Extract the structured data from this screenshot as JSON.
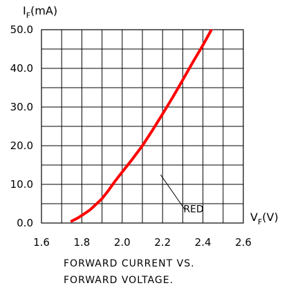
{
  "chart_data": {
    "type": "line",
    "title": "",
    "caption": [
      "FORWARD CURRENT VS.",
      "FORWARD VOLTAGE."
    ],
    "ylabel": {
      "symbol": "I",
      "sub": "F",
      "unit": "(mA)"
    },
    "xlabel": {
      "symbol": "V",
      "sub": "F",
      "unit": "(V)"
    },
    "xlim": [
      1.6,
      2.6
    ],
    "ylim": [
      0,
      50
    ],
    "x_gridlines": [
      1.6,
      1.7,
      1.8,
      1.9,
      2.0,
      2.1,
      2.2,
      2.3,
      2.4,
      2.5,
      2.6
    ],
    "y_gridlines": [
      0,
      5,
      10,
      15,
      20,
      25,
      30,
      35,
      40,
      45,
      50
    ],
    "grid": true,
    "x_ticks": [
      {
        "value": 1.6,
        "label": "1.6"
      },
      {
        "value": 1.8,
        "label": "1.8"
      },
      {
        "value": 2.0,
        "label": "2.0"
      },
      {
        "value": 2.2,
        "label": "2.2"
      },
      {
        "value": 2.4,
        "label": "2.4"
      },
      {
        "value": 2.6,
        "label": "2.6"
      }
    ],
    "y_ticks": [
      {
        "value": 0,
        "label": "0.0"
      },
      {
        "value": 10,
        "label": "10.0"
      },
      {
        "value": 20,
        "label": "20.0"
      },
      {
        "value": 30,
        "label": "30.0"
      },
      {
        "value": 40,
        "label": "40.0"
      },
      {
        "value": 50,
        "label": "50.0"
      }
    ],
    "series": [
      {
        "name": "RED",
        "color": "#ff0000",
        "x": [
          1.75,
          1.78,
          1.81,
          1.84,
          1.87,
          1.9,
          1.93,
          1.96,
          2.0,
          2.05,
          2.1,
          2.15,
          2.2,
          2.25,
          2.3,
          2.35,
          2.4,
          2.44
        ],
        "y": [
          0.5,
          1.3,
          2.3,
          3.4,
          4.8,
          6.3,
          8.3,
          10.5,
          13.2,
          16.5,
          20.0,
          24.0,
          28.2,
          32.5,
          37.0,
          41.6,
          46.0,
          49.8
        ]
      }
    ],
    "annotation": {
      "text": "RED",
      "from": [
        2.19,
        12.5
      ],
      "to": [
        2.31,
        3.5
      ]
    }
  }
}
